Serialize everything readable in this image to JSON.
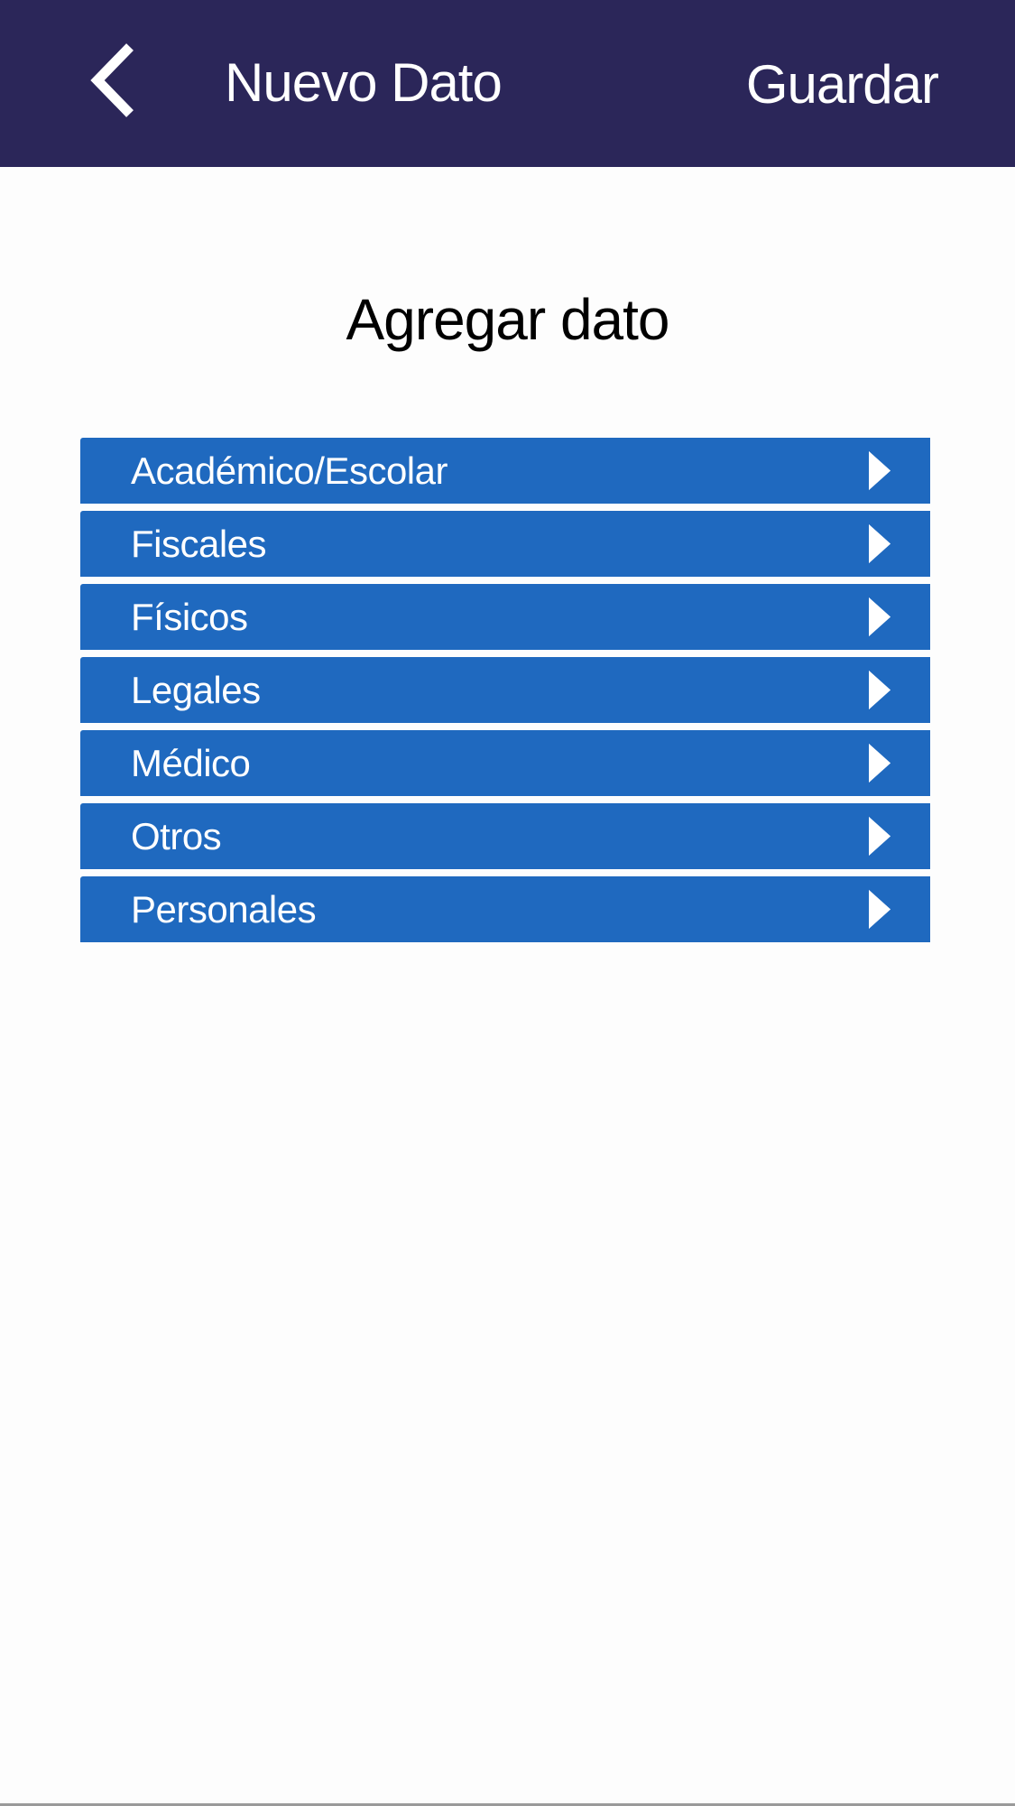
{
  "colors": {
    "header": "#2b2659",
    "row": "#1f69bf"
  },
  "header": {
    "back_icon": "chevron-left-icon",
    "title": "Nuevo Dato",
    "save_label": "Guardar"
  },
  "main": {
    "title": "Agregar dato",
    "categories": [
      {
        "label": "Académico/Escolar",
        "icon": "chevron-right-icon"
      },
      {
        "label": "Fiscales",
        "icon": "chevron-right-icon"
      },
      {
        "label": "Físicos",
        "icon": "chevron-right-icon"
      },
      {
        "label": "Legales",
        "icon": "chevron-right-icon"
      },
      {
        "label": "Médico",
        "icon": "chevron-right-icon"
      },
      {
        "label": "Otros",
        "icon": "chevron-right-icon"
      },
      {
        "label": "Personales",
        "icon": "chevron-right-icon"
      }
    ]
  }
}
